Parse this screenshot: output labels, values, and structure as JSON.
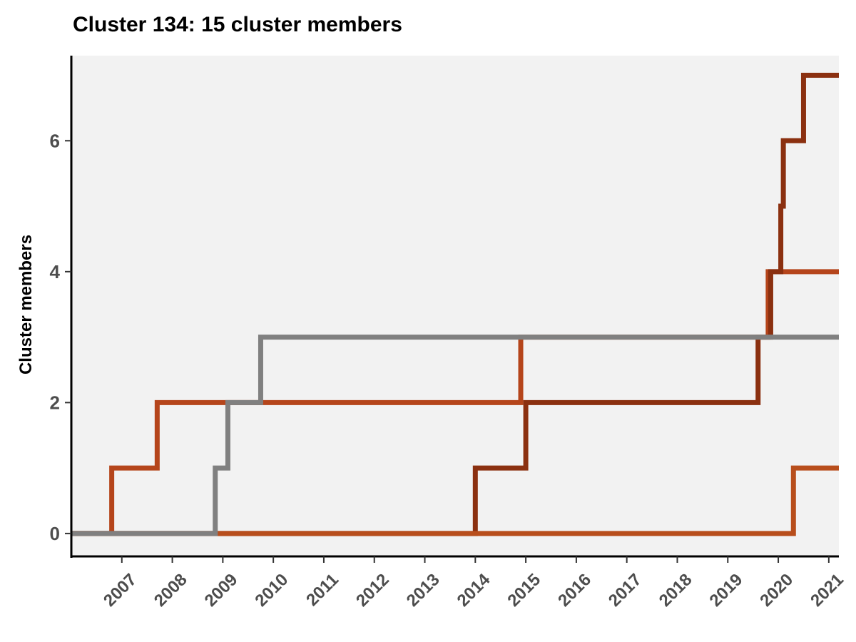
{
  "chart_data": {
    "type": "line",
    "step": true,
    "title": "Cluster 134: 15 cluster members",
    "xlabel": "",
    "ylabel": "Cluster members",
    "xlim": [
      2006.0,
      2021.2
    ],
    "ylim": [
      -0.35,
      7.3
    ],
    "x_ticks": [
      2007,
      2008,
      2009,
      2010,
      2011,
      2012,
      2013,
      2014,
      2015,
      2016,
      2017,
      2018,
      2019,
      2020,
      2021
    ],
    "y_ticks": [
      0,
      2,
      4,
      6
    ],
    "grid": false,
    "panel_background": "#f2f2f2",
    "series": [
      {
        "color": "#b5451b",
        "x": [
          2006.0,
          2006.8,
          2007.7,
          2014.9,
          2019.8,
          2021.2
        ],
        "y": [
          0,
          1,
          2,
          3,
          4,
          4
        ]
      },
      {
        "color": "#8b3010",
        "x": [
          2006.0,
          2014.0,
          2015.0,
          2019.6,
          2019.85,
          2020.05,
          2020.1,
          2020.5,
          2021.2
        ],
        "y": [
          0,
          1,
          2,
          3,
          4,
          5,
          6,
          7,
          7
        ]
      },
      {
        "color": "#b84e1c",
        "x": [
          2006.0,
          2020.3,
          2021.2
        ],
        "y": [
          0,
          1,
          1
        ]
      },
      {
        "color": "#808080",
        "x": [
          2006.0,
          2008.85,
          2009.1,
          2009.75,
          2021.2
        ],
        "y": [
          0,
          1,
          2,
          3,
          3
        ]
      }
    ]
  }
}
